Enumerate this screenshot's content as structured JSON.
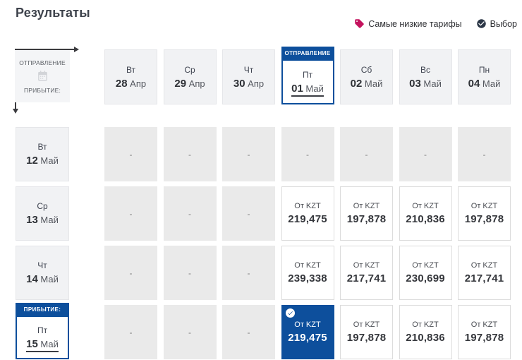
{
  "page": {
    "title": "Результаты"
  },
  "legend": {
    "lowest_fares_label": "Самые низкие тарифы",
    "selection_label": "Выбор"
  },
  "axis_box": {
    "departure_label": "ОТПРАВЛЕНИЕ",
    "arrival_label": "ПРИБЫТИЕ:"
  },
  "colors": {
    "accent_blue": "#0d4f9c",
    "tag_magenta": "#c4135e",
    "check_navy": "#2b3646",
    "calendar_gray": "#d2d4d8"
  },
  "matrix": {
    "price_prefix": "От KZT",
    "empty_cell_text": "-",
    "departure_badge": "ОТПРАВЛЕНИЕ",
    "arrival_badge": "ПРИБЫТИЕ:",
    "columns": [
      {
        "day": "Вт",
        "date": "28",
        "month": "Апр",
        "selected": false
      },
      {
        "day": "Ср",
        "date": "29",
        "month": "Апр",
        "selected": false
      },
      {
        "day": "Чт",
        "date": "30",
        "month": "Апр",
        "selected": false
      },
      {
        "day": "Пт",
        "date": "01",
        "month": "Май",
        "selected": true
      },
      {
        "day": "Сб",
        "date": "02",
        "month": "Май",
        "selected": false
      },
      {
        "day": "Вс",
        "date": "03",
        "month": "Май",
        "selected": false
      },
      {
        "day": "Пн",
        "date": "04",
        "month": "Май",
        "selected": false
      }
    ],
    "rows": [
      {
        "day": "Вт",
        "date": "12",
        "month": "Май",
        "selected": false,
        "cells": [
          "-",
          "-",
          "-",
          "-",
          "-",
          "-",
          "-"
        ]
      },
      {
        "day": "Ср",
        "date": "13",
        "month": "Май",
        "selected": false,
        "cells": [
          "-",
          "-",
          "-",
          "219,475",
          "197,878",
          "210,836",
          "197,878"
        ]
      },
      {
        "day": "Чт",
        "date": "14",
        "month": "Май",
        "selected": false,
        "cells": [
          "-",
          "-",
          "-",
          "239,338",
          "217,741",
          "230,699",
          "217,741"
        ]
      },
      {
        "day": "Пт",
        "date": "15",
        "month": "Май",
        "selected": true,
        "cells": [
          "-",
          "-",
          "-",
          "219,475",
          "197,878",
          "210,836",
          "197,878"
        ]
      }
    ],
    "selected_cell": {
      "row": 3,
      "col": 3
    }
  }
}
